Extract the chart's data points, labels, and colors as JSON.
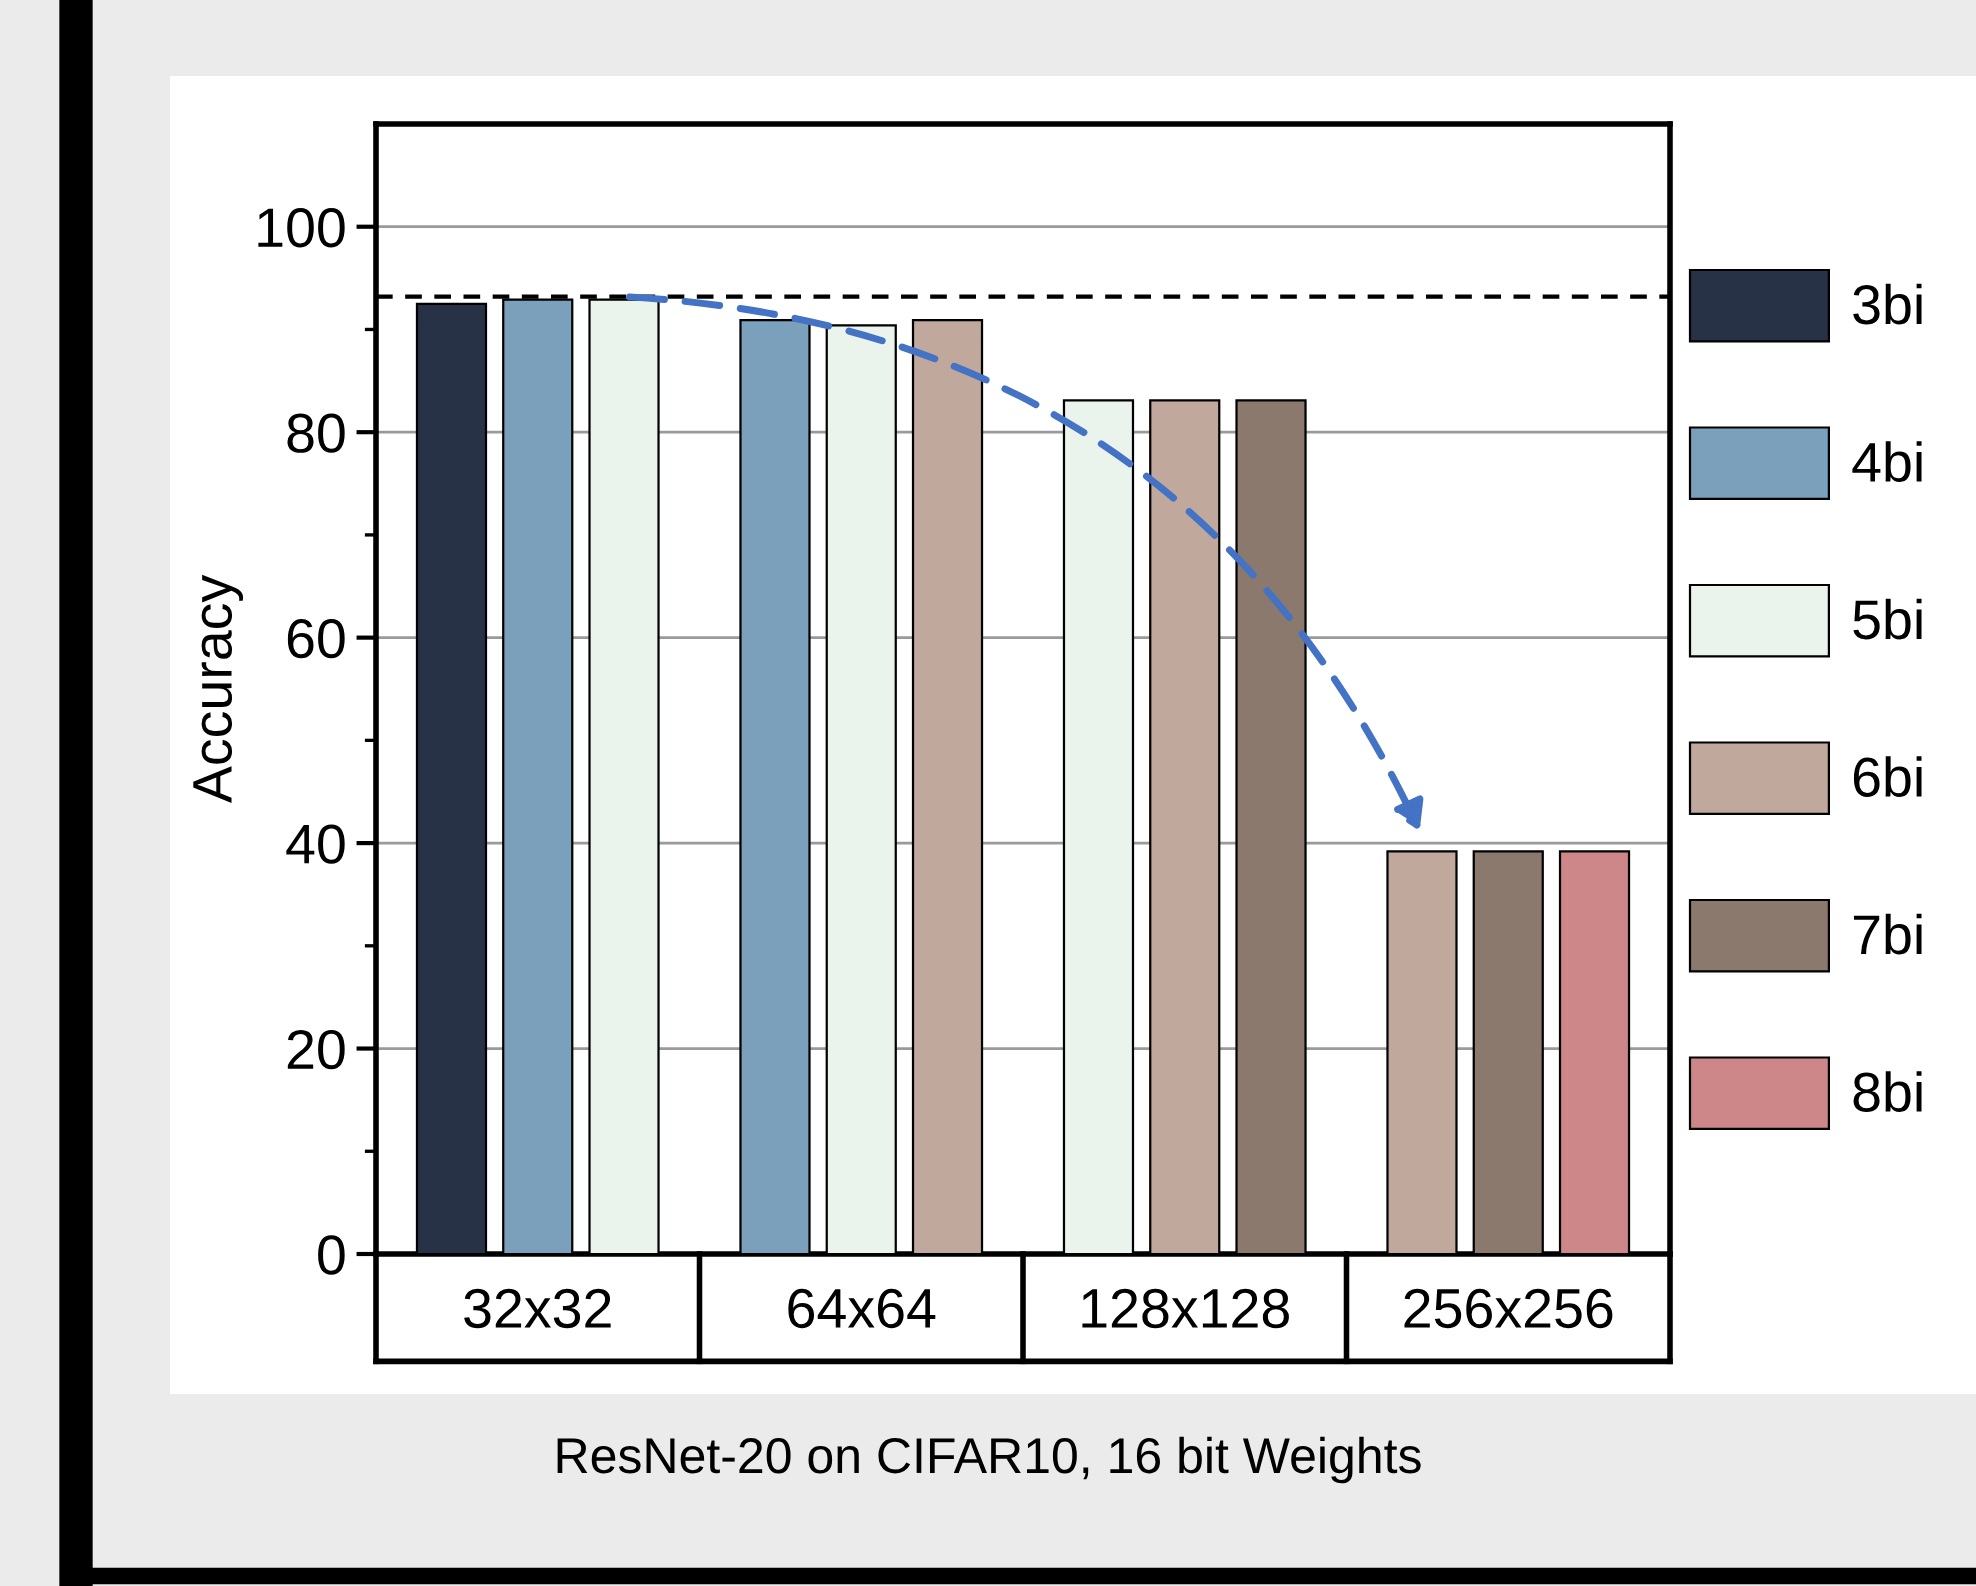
{
  "chart_data": {
    "type": "bar",
    "ylabel": "Accuracy",
    "categories": [
      "32x32",
      "64x64",
      "128x128",
      "256x256"
    ],
    "series": [
      {
        "name": "3bi",
        "color": "#283246",
        "values": [
          92.5,
          null,
          null,
          null
        ]
      },
      {
        "name": "4bi",
        "color": "#7aa0bb",
        "values": [
          92.9,
          90.9,
          null,
          null
        ]
      },
      {
        "name": "5bi",
        "color": "#eaf3ec",
        "values": [
          92.9,
          90.4,
          83.1,
          null
        ]
      },
      {
        "name": "6bi",
        "color": "#c0a89c",
        "values": [
          null,
          90.9,
          83.1,
          39.2
        ]
      },
      {
        "name": "7bi",
        "color": "#8b796d",
        "values": [
          null,
          null,
          83.1,
          39.2
        ]
      },
      {
        "name": "8bi",
        "color": "#cd8789",
        "values": [
          null,
          null,
          null,
          39.2
        ]
      }
    ],
    "ylim": [
      0,
      110
    ],
    "yticks": [
      0,
      20,
      40,
      60,
      80,
      100
    ],
    "grid": "y",
    "legend": "right",
    "ref_lines": [
      {
        "axis": "y",
        "value": 93.2,
        "color": "#000000",
        "line_style": "dashed"
      }
    ],
    "annotations": [
      "ResNet-20 on CIFAR10, 16 bit Weights"
    ]
  }
}
